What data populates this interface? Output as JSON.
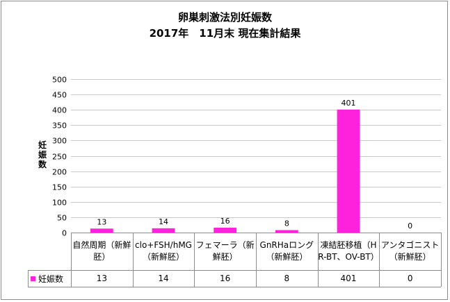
{
  "chart_data": {
    "type": "bar",
    "title": "卵巣刺激法別妊娠数",
    "subtitle": "2017年　11月末 現在集計結果",
    "ylabel": "妊娠数",
    "ylim": [
      0,
      500
    ],
    "yticks": [
      0,
      50,
      100,
      150,
      200,
      250,
      300,
      350,
      400,
      450,
      500
    ],
    "grid": true,
    "legend": "table",
    "categories": [
      "自然周期（新鮮胚）",
      "clo+FSH/hMG（新鮮胚）",
      "フェマーラ（新鮮胚）",
      "GnRHaロング（新鮮胚）",
      "凍結胚移植（HR-BT、OV-BT）",
      "アンタゴニスト（新鮮胚）"
    ],
    "series": [
      {
        "name": "妊娠数",
        "values": [
          13,
          14,
          16,
          8,
          401,
          0
        ],
        "color": "#ff22dd"
      }
    ]
  }
}
